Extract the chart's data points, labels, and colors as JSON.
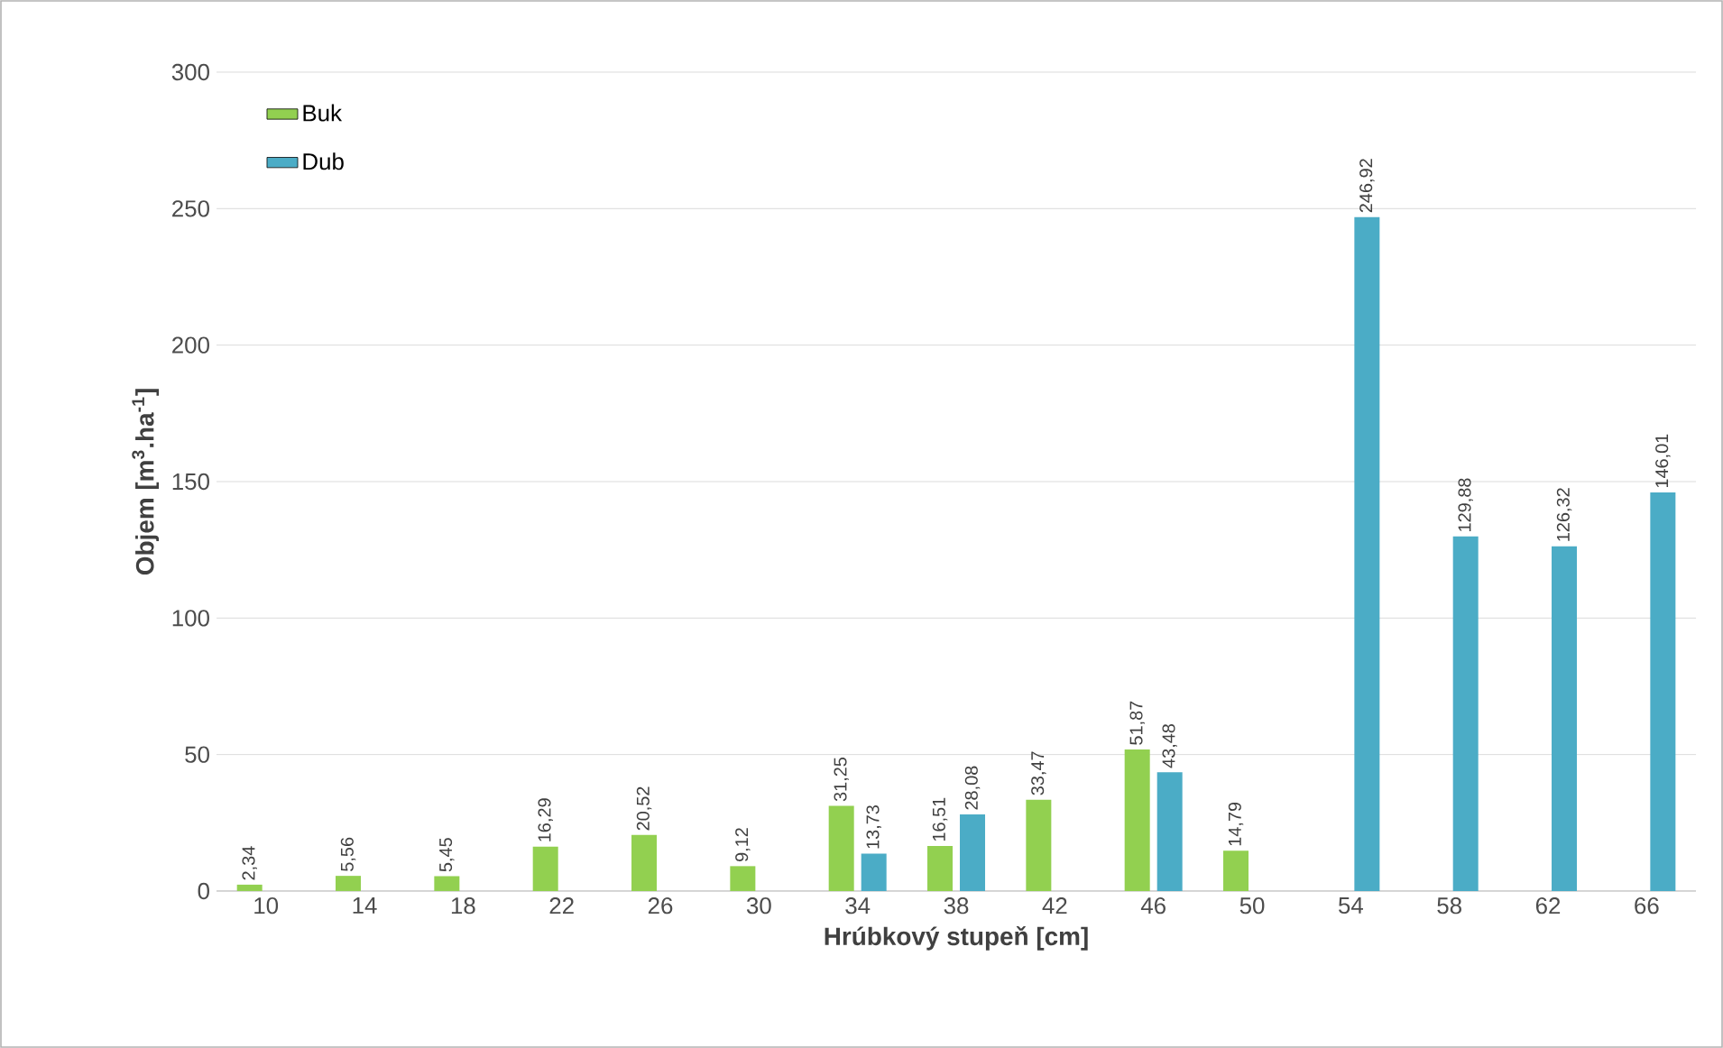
{
  "chart_data": {
    "type": "bar",
    "xlabel": "Hrúbkový stupeň [cm]",
    "ylabel": "**Objem [m$^{3}$.ha$^{-1}$]**",
    "categories": [
      "10",
      "14",
      "18",
      "22",
      "26",
      "30",
      "34",
      "38",
      "42",
      "46",
      "50",
      "54",
      "58",
      "62",
      "66"
    ],
    "series": [
      {
        "name": "Buk",
        "color": "#92d050",
        "values": [
          2.34,
          5.56,
          5.45,
          16.29,
          20.52,
          9.12,
          31.25,
          16.51,
          33.47,
          51.87,
          14.79,
          null,
          null,
          null,
          null
        ],
        "value_labels": [
          "2,34",
          "5,56",
          "5,45",
          "16,29",
          "20,52",
          "9,12",
          "31,25",
          "16,51",
          "33,47",
          "51,87",
          "14,79",
          null,
          null,
          null,
          null
        ]
      },
      {
        "name": "Dub",
        "color": "#4bacc6",
        "values": [
          null,
          null,
          null,
          null,
          null,
          null,
          13.73,
          28.08,
          null,
          43.48,
          null,
          246.92,
          129.88,
          126.32,
          146.01
        ],
        "value_labels": [
          null,
          null,
          null,
          null,
          null,
          null,
          "13,73",
          "28,08",
          null,
          "43,48",
          null,
          "246,92",
          "129,88",
          "126,32",
          "146,01"
        ]
      }
    ],
    "ylim": [
      0,
      300
    ],
    "yticks": [
      0,
      50,
      100,
      150,
      200,
      250,
      300
    ],
    "grid": "y",
    "legend": "top left"
  }
}
